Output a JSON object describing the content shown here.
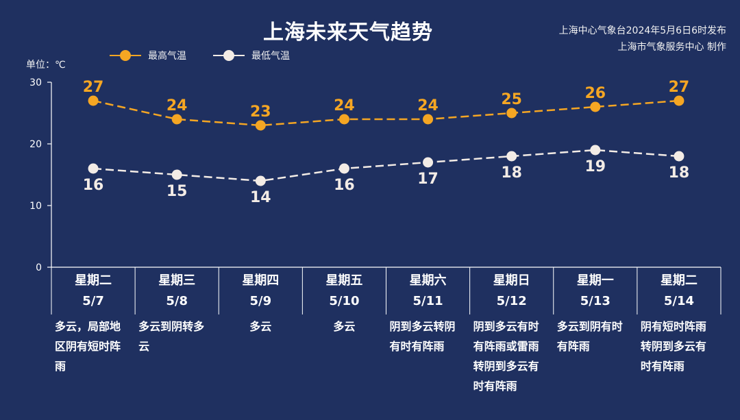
{
  "header": {
    "title": "上海未来天气趋势",
    "source_line1": "上海中心气象台2024年5月6日6时发布",
    "source_line2": "上海市气象服务中心 制作"
  },
  "colors": {
    "background": "#1f3060",
    "high": "#f5a623",
    "low": "#f3ece6",
    "axis": "#ffffff"
  },
  "chart_data": {
    "type": "line",
    "ylabel": "单位：℃",
    "ylim": [
      0,
      30
    ],
    "yticks": [
      0,
      10,
      20,
      30
    ],
    "categories": [
      "5/7",
      "5/8",
      "5/9",
      "5/10",
      "5/11",
      "5/12",
      "5/13",
      "5/14"
    ],
    "series": [
      {
        "name": "最高气温",
        "values": [
          27,
          24,
          23,
          24,
          24,
          25,
          26,
          27
        ],
        "label_position": "above",
        "line_style": "dashed"
      },
      {
        "name": "最低气温",
        "values": [
          16,
          15,
          14,
          16,
          17,
          18,
          19,
          18
        ],
        "label_position": "below",
        "line_style": "dashed"
      }
    ],
    "legend": "top-left",
    "grid": false
  },
  "days": [
    {
      "weekday": "星期二",
      "date": "5/7",
      "weather": "多云，局部地区阴有短时阵雨"
    },
    {
      "weekday": "星期三",
      "date": "5/8",
      "weather": "多云到阴转多云"
    },
    {
      "weekday": "星期四",
      "date": "5/9",
      "weather": "多云"
    },
    {
      "weekday": "星期五",
      "date": "5/10",
      "weather": "多云"
    },
    {
      "weekday": "星期六",
      "date": "5/11",
      "weather": "阴到多云转阴有时有阵雨"
    },
    {
      "weekday": "星期日",
      "date": "5/12",
      "weather": "阴到多云有时有阵雨或雷雨转阴到多云有时有阵雨"
    },
    {
      "weekday": "星期一",
      "date": "5/13",
      "weather": "多云到阴有时有阵雨"
    },
    {
      "weekday": "星期二",
      "date": "5/14",
      "weather": "阴有短时阵雨转阴到多云有时有阵雨"
    }
  ]
}
